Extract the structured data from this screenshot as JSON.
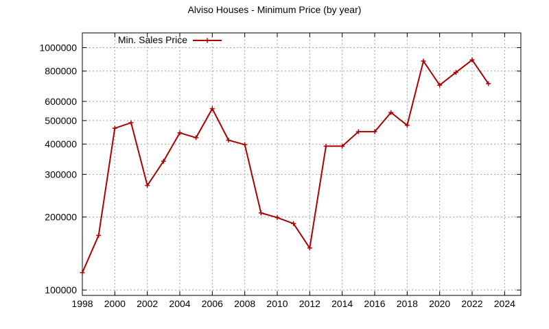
{
  "chart_data": {
    "type": "line",
    "title": "Alviso Houses - Minimum Price (by year)",
    "xlabel": "",
    "ylabel": "",
    "x_ticks": [
      1998,
      2000,
      2002,
      2004,
      2006,
      2008,
      2010,
      2012,
      2014,
      2016,
      2018,
      2020,
      2022,
      2024
    ],
    "y_ticks": [
      100000,
      200000,
      300000,
      400000,
      500000,
      600000,
      800000,
      1000000
    ],
    "xlim": [
      1998,
      2025
    ],
    "ylim": [
      95000,
      1150000
    ],
    "y_scale": "log",
    "grid": true,
    "legend_position": "top-left",
    "series": [
      {
        "name": "Min. Sales Price",
        "color": "#aa0000",
        "marker": "plus",
        "x": [
          1998,
          1999,
          2000,
          2001,
          2002,
          2003,
          2004,
          2005,
          2006,
          2007,
          2008,
          2009,
          2010,
          2011,
          2012,
          2013,
          2014,
          2015,
          2016,
          2017,
          2018,
          2019,
          2020,
          2021,
          2022,
          2023
        ],
        "y": [
          118000,
          168000,
          465000,
          490000,
          270000,
          340000,
          445000,
          425000,
          560000,
          415000,
          398000,
          208000,
          199000,
          188000,
          149000,
          392000,
          392000,
          450000,
          450000,
          540000,
          478000,
          880000,
          700000,
          790000,
          890000,
          710000
        ]
      }
    ]
  }
}
